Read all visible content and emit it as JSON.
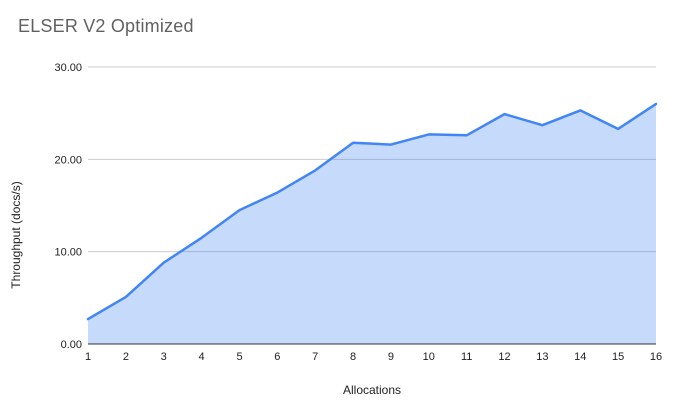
{
  "header": {
    "title": "ELSER V2 Optimized"
  },
  "chart_data": {
    "type": "area",
    "title": "ELSER V2 Optimized",
    "xlabel": "Allocations",
    "ylabel": "Throughput (docs/s)",
    "x": [
      1,
      2,
      3,
      4,
      5,
      6,
      7,
      8,
      9,
      10,
      11,
      12,
      13,
      14,
      15,
      16
    ],
    "values": [
      2.7,
      5.1,
      8.8,
      11.5,
      14.5,
      16.4,
      18.8,
      21.8,
      21.6,
      22.7,
      22.6,
      24.9,
      23.7,
      25.3,
      23.3,
      26.0
    ],
    "ylim": [
      0,
      30
    ],
    "ytick_labels": [
      "0.00",
      "10.00",
      "20.00",
      "30.00"
    ],
    "grid": "horizontal",
    "legend": "none",
    "colors": {
      "series_line": "#4285f4",
      "series_fill": "#4285f4",
      "series_fill_opacity": 0.3,
      "gridline": "#cccccc",
      "axis_line": "#333333",
      "tick_text": "#222222",
      "axis_title_text": "#222222",
      "title_text": "#616161"
    }
  }
}
